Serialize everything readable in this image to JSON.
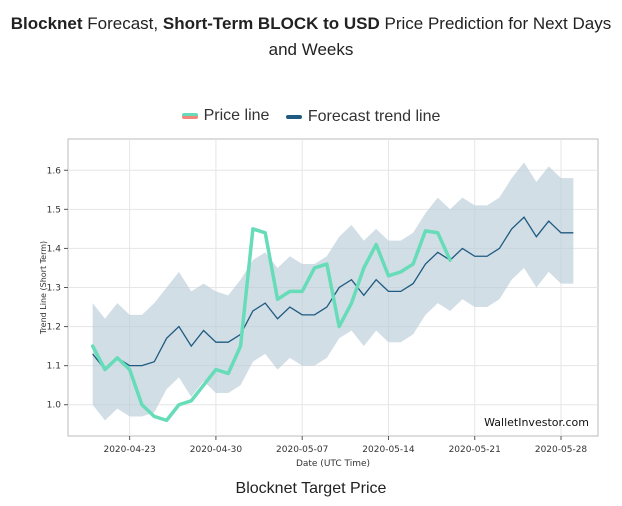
{
  "heading": {
    "brand": "Blocknet",
    "part1": " Forecast, ",
    "bold2": "Short-Term BLOCK to USD",
    "part2": " Price Prediction for Next Days and Weeks"
  },
  "legend": {
    "price_label": "Price line",
    "trend_label": "Forecast trend line"
  },
  "caption": "Blocknet Target Price",
  "colors": {
    "price": "#67dcb8",
    "trend": "#1f5a80",
    "band": "#b9ccd8"
  },
  "chart_data": {
    "type": "line",
    "xlabel": "Date (UTC Time)",
    "ylabel": "Trend Line (Short Term)",
    "watermark": "WalletInvestor.com",
    "xlim": [
      "2020-04-18",
      "2020-05-31"
    ],
    "ylim": [
      0.92,
      1.68
    ],
    "x_ticks": [
      "2020-04-23",
      "2020-04-30",
      "2020-05-07",
      "2020-05-14",
      "2020-05-21",
      "2020-05-28"
    ],
    "y_ticks": [
      1.0,
      1.1,
      1.2,
      1.3,
      1.4,
      1.5,
      1.6
    ],
    "grid": true,
    "series": [
      {
        "name": "Price line",
        "x": [
          "2020-04-20",
          "2020-04-21",
          "2020-04-22",
          "2020-04-23",
          "2020-04-24",
          "2020-04-25",
          "2020-04-26",
          "2020-04-27",
          "2020-04-28",
          "2020-04-29",
          "2020-04-30",
          "2020-05-01",
          "2020-05-02",
          "2020-05-03",
          "2020-05-04",
          "2020-05-05",
          "2020-05-06",
          "2020-05-07",
          "2020-05-08",
          "2020-05-09",
          "2020-05-10",
          "2020-05-11",
          "2020-05-12",
          "2020-05-13",
          "2020-05-14",
          "2020-05-15",
          "2020-05-16",
          "2020-05-17",
          "2020-05-18",
          "2020-05-19"
        ],
        "values": [
          1.15,
          1.09,
          1.12,
          1.09,
          1.0,
          0.97,
          0.96,
          1.0,
          1.01,
          1.05,
          1.09,
          1.08,
          1.15,
          1.45,
          1.44,
          1.27,
          1.29,
          1.29,
          1.35,
          1.36,
          1.2,
          1.26,
          1.35,
          1.41,
          1.33,
          1.34,
          1.36,
          1.445,
          1.44,
          1.37
        ]
      },
      {
        "name": "Forecast trend line",
        "x": [
          "2020-04-20",
          "2020-04-21",
          "2020-04-22",
          "2020-04-23",
          "2020-04-24",
          "2020-04-25",
          "2020-04-26",
          "2020-04-27",
          "2020-04-28",
          "2020-04-29",
          "2020-04-30",
          "2020-05-01",
          "2020-05-02",
          "2020-05-03",
          "2020-05-04",
          "2020-05-05",
          "2020-05-06",
          "2020-05-07",
          "2020-05-08",
          "2020-05-09",
          "2020-05-10",
          "2020-05-11",
          "2020-05-12",
          "2020-05-13",
          "2020-05-14",
          "2020-05-15",
          "2020-05-16",
          "2020-05-17",
          "2020-05-18",
          "2020-05-19",
          "2020-05-20",
          "2020-05-21",
          "2020-05-22",
          "2020-05-23",
          "2020-05-24",
          "2020-05-25",
          "2020-05-26",
          "2020-05-27",
          "2020-05-28",
          "2020-05-29"
        ],
        "values": [
          1.13,
          1.09,
          1.12,
          1.1,
          1.1,
          1.11,
          1.17,
          1.2,
          1.15,
          1.19,
          1.16,
          1.16,
          1.18,
          1.24,
          1.26,
          1.22,
          1.25,
          1.23,
          1.23,
          1.25,
          1.3,
          1.32,
          1.28,
          1.32,
          1.29,
          1.29,
          1.31,
          1.36,
          1.39,
          1.37,
          1.4,
          1.38,
          1.38,
          1.4,
          1.45,
          1.48,
          1.43,
          1.47,
          1.44,
          1.44
        ]
      }
    ],
    "band": {
      "upper": [
        1.26,
        1.22,
        1.26,
        1.23,
        1.23,
        1.26,
        1.3,
        1.34,
        1.29,
        1.31,
        1.29,
        1.28,
        1.32,
        1.37,
        1.39,
        1.35,
        1.38,
        1.36,
        1.36,
        1.38,
        1.43,
        1.46,
        1.42,
        1.45,
        1.42,
        1.42,
        1.44,
        1.49,
        1.53,
        1.5,
        1.53,
        1.51,
        1.51,
        1.53,
        1.58,
        1.62,
        1.57,
        1.61,
        1.58,
        1.58
      ],
      "lower": [
        1.0,
        0.96,
        0.99,
        0.97,
        0.97,
        0.98,
        1.04,
        1.07,
        1.02,
        1.06,
        1.03,
        1.03,
        1.05,
        1.11,
        1.13,
        1.09,
        1.12,
        1.1,
        1.1,
        1.12,
        1.17,
        1.19,
        1.15,
        1.19,
        1.16,
        1.16,
        1.18,
        1.23,
        1.26,
        1.24,
        1.27,
        1.25,
        1.25,
        1.27,
        1.32,
        1.35,
        1.3,
        1.34,
        1.31,
        1.31
      ]
    }
  }
}
